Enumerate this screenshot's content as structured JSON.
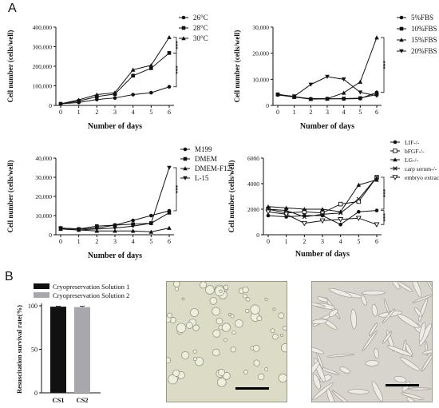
{
  "panel_labels": {
    "a": "A",
    "b": "B"
  },
  "chart_data": [
    {
      "type": "line",
      "x": [
        0,
        1,
        2,
        3,
        4,
        5,
        6
      ],
      "xlabel": "Number of days",
      "ylabel": "Cell number (cells/well)",
      "ylim": [
        0,
        400000
      ],
      "yticks": [
        "0",
        "100,000",
        "200,000",
        "300,000",
        "400,000"
      ],
      "grid": false,
      "legend_position": "top-right",
      "significance": [
        "***",
        "***"
      ],
      "series": [
        {
          "name": "26°C",
          "marker": "circle",
          "values": [
            8000,
            15000,
            30000,
            38000,
            55000,
            65000,
            95000
          ]
        },
        {
          "name": "28°C",
          "marker": "square",
          "values": [
            8000,
            22000,
            45000,
            58000,
            152000,
            190000,
            268000
          ]
        },
        {
          "name": "30°C",
          "marker": "triangle",
          "values": [
            8000,
            28000,
            55000,
            65000,
            182000,
            205000,
            348000
          ]
        }
      ]
    },
    {
      "type": "line",
      "x": [
        0,
        1,
        2,
        3,
        4,
        5,
        6
      ],
      "xlabel": "Number of days",
      "ylabel": "Cell number (cells/well)",
      "ylim": [
        0,
        30000
      ],
      "yticks": [
        "0",
        "10,000",
        "20,000",
        "30,000"
      ],
      "grid": false,
      "legend_position": "top-right",
      "significance": [
        "***"
      ],
      "series": [
        {
          "name": "5%FBS",
          "marker": "circle",
          "values": [
            4000,
            3200,
            2400,
            2600,
            2500,
            2600,
            5000
          ]
        },
        {
          "name": "10%FBS",
          "marker": "square",
          "values": [
            4200,
            3400,
            2400,
            2500,
            2600,
            2800,
            4200
          ]
        },
        {
          "name": "15%FBS",
          "marker": "triangle",
          "values": [
            4300,
            3200,
            2600,
            2600,
            4800,
            9000,
            26000
          ]
        },
        {
          "name": "20%FBS",
          "marker": "triangle-down",
          "values": [
            4000,
            3500,
            8000,
            11000,
            10000,
            5000,
            3700
          ]
        }
      ]
    },
    {
      "type": "line",
      "x": [
        0,
        1,
        2,
        3,
        4,
        5,
        6
      ],
      "xlabel": "Number of days",
      "ylabel": "Cell number (cells/well)",
      "ylim": [
        0,
        40000
      ],
      "yticks": [
        "0",
        "10,000",
        "20,000",
        "30,000",
        "40,000"
      ],
      "grid": false,
      "legend_position": "top-right",
      "significance": [
        "***"
      ],
      "series": [
        {
          "name": "M199",
          "marker": "circle",
          "values": [
            3500,
            3000,
            3500,
            5000,
            7500,
            10000,
            12500
          ]
        },
        {
          "name": "DMEM",
          "marker": "square",
          "values": [
            3500,
            3000,
            4500,
            5000,
            5500,
            6000,
            11500
          ]
        },
        {
          "name": "DMEM-F12",
          "marker": "triangle",
          "values": [
            3000,
            2500,
            2000,
            2000,
            2000,
            1500,
            3500
          ]
        },
        {
          "name": "L-15",
          "marker": "triangle-down",
          "values": [
            3000,
            2500,
            3000,
            3500,
            4500,
            6000,
            35000
          ]
        }
      ]
    },
    {
      "type": "line",
      "x": [
        0,
        1,
        2,
        3,
        4,
        5,
        6
      ],
      "xlabel": "Number of days",
      "ylabel": "Cell number (cells/well)",
      "ylim": [
        0,
        6000
      ],
      "yticks": [
        "0",
        "2000",
        "4000",
        "6000"
      ],
      "grid": false,
      "legend_position": "top-right",
      "significance": [
        "***",
        "***"
      ],
      "series": [
        {
          "name": "LIF-/-",
          "marker": "circle",
          "values": [
            1500,
            1400,
            1500,
            1500,
            800,
            1800,
            1900
          ]
        },
        {
          "name": "bFGF-/-",
          "marker": "square-open",
          "values": [
            2000,
            1700,
            1800,
            1700,
            2400,
            2600,
            4500
          ]
        },
        {
          "name": "LG-/-",
          "marker": "triangle",
          "values": [
            2200,
            2100,
            2000,
            2000,
            1800,
            3900,
            4300
          ]
        },
        {
          "name": "carp serum-/-",
          "marker": "x",
          "values": [
            2000,
            1900,
            1400,
            1600,
            1700,
            2800,
            4500
          ]
        },
        {
          "name": "embryo extract-/-",
          "marker": "triangle-down-open",
          "values": [
            1800,
            1600,
            900,
            1100,
            1200,
            1300,
            800
          ]
        }
      ]
    },
    {
      "type": "bar",
      "categories": [
        "CS1",
        "CS2"
      ],
      "values": [
        99,
        98.5
      ],
      "errors": [
        0.5,
        1
      ],
      "colors": [
        "#111111",
        "#a7a7ad"
      ],
      "ylabel": "Resuscitation survival rate(%)",
      "ylim": [
        0,
        100
      ],
      "yticks": [
        "0",
        "50",
        "100"
      ],
      "grid": false,
      "legend_position": "top",
      "series": [
        {
          "name": "Cryopreservation Solution 1"
        },
        {
          "name": "Cryopreservation Solution 2"
        }
      ]
    }
  ]
}
